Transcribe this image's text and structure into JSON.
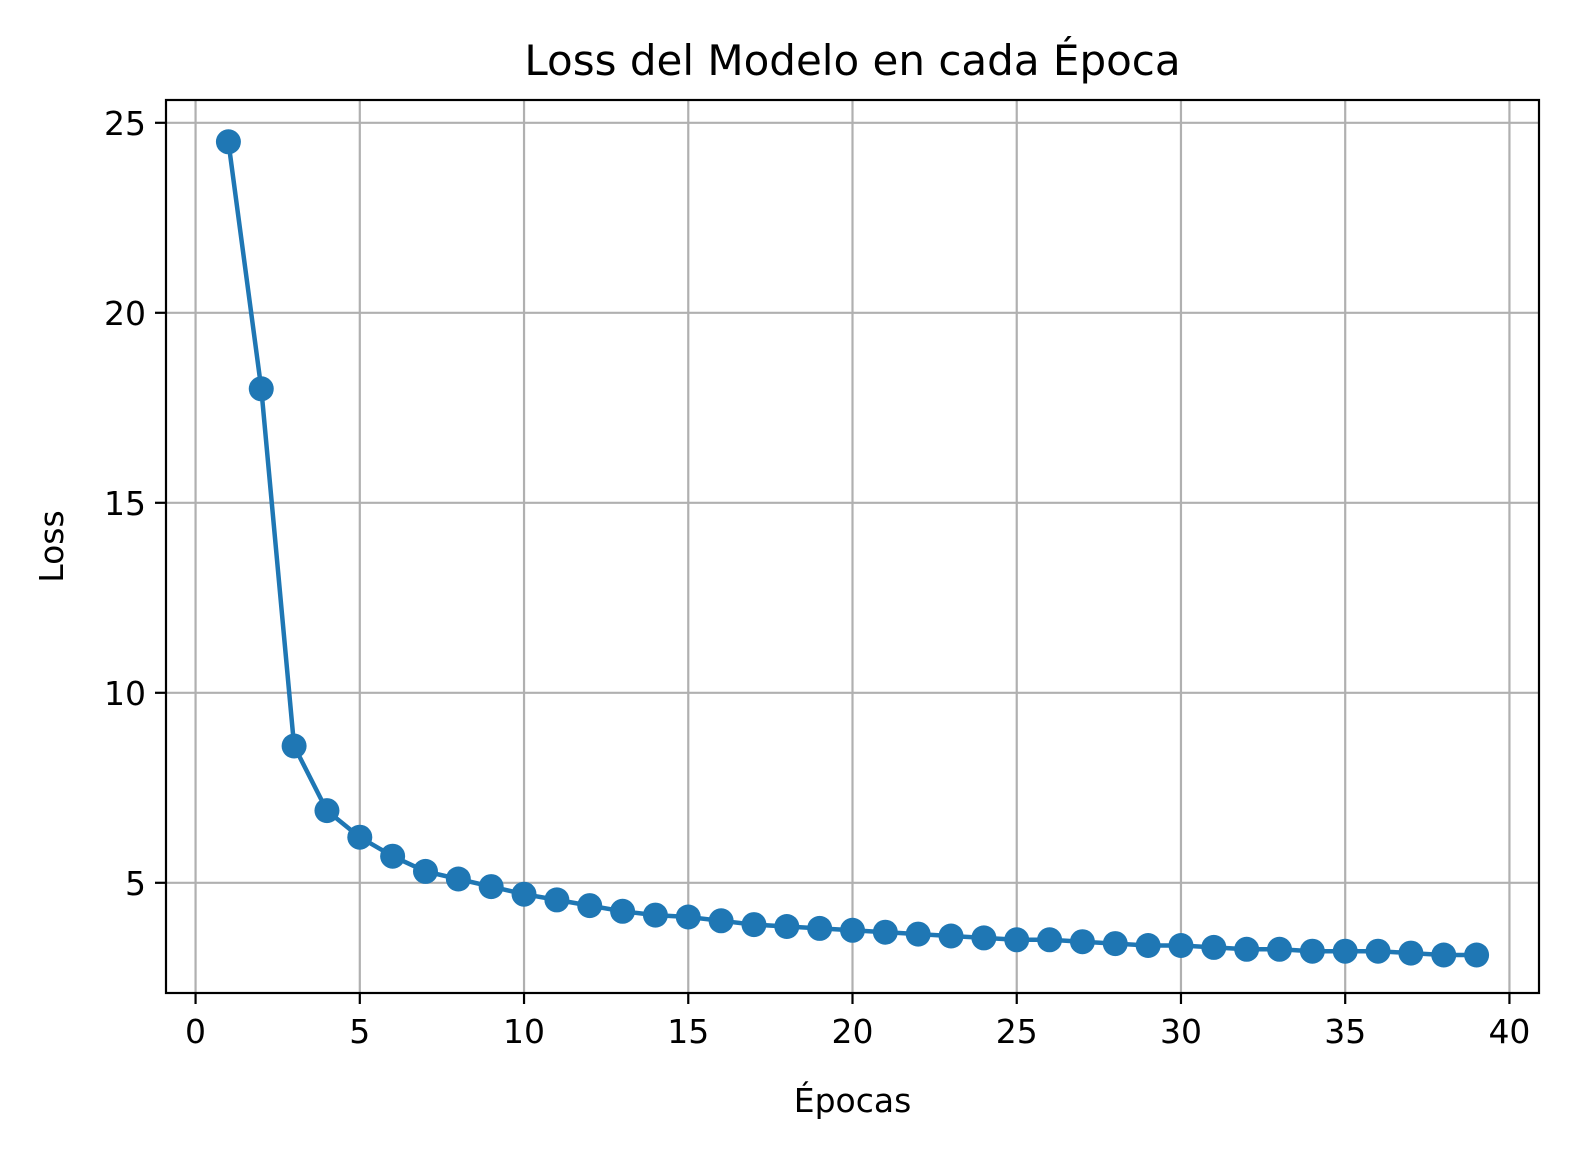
{
  "chart_data": {
    "type": "line",
    "title": "Loss del Modelo en cada Época",
    "xlabel": "Épocas",
    "ylabel": "Loss",
    "xlim": [
      -0.9,
      40.9
    ],
    "ylim": [
      2.1,
      25.6
    ],
    "xticks": [
      0,
      5,
      10,
      15,
      20,
      25,
      30,
      35,
      40
    ],
    "yticks": [
      5,
      10,
      15,
      20,
      25
    ],
    "grid": true,
    "legend": "none",
    "series": [
      {
        "color": "#1f77b4",
        "marker": "circle",
        "x": [
          1,
          2,
          3,
          4,
          5,
          6,
          7,
          8,
          9,
          10,
          11,
          12,
          13,
          14,
          15,
          16,
          17,
          18,
          19,
          20,
          21,
          22,
          23,
          24,
          25,
          26,
          27,
          28,
          29,
          30,
          31,
          32,
          33,
          34,
          35,
          36,
          37,
          38,
          39
        ],
        "y": [
          24.5,
          18.0,
          8.6,
          6.9,
          6.2,
          5.7,
          5.3,
          5.1,
          4.9,
          4.7,
          4.55,
          4.4,
          4.25,
          4.15,
          4.1,
          4.0,
          3.9,
          3.85,
          3.8,
          3.75,
          3.7,
          3.65,
          3.6,
          3.55,
          3.5,
          3.5,
          3.45,
          3.4,
          3.35,
          3.35,
          3.3,
          3.25,
          3.25,
          3.2,
          3.2,
          3.2,
          3.15,
          3.1,
          3.1
        ]
      }
    ]
  }
}
